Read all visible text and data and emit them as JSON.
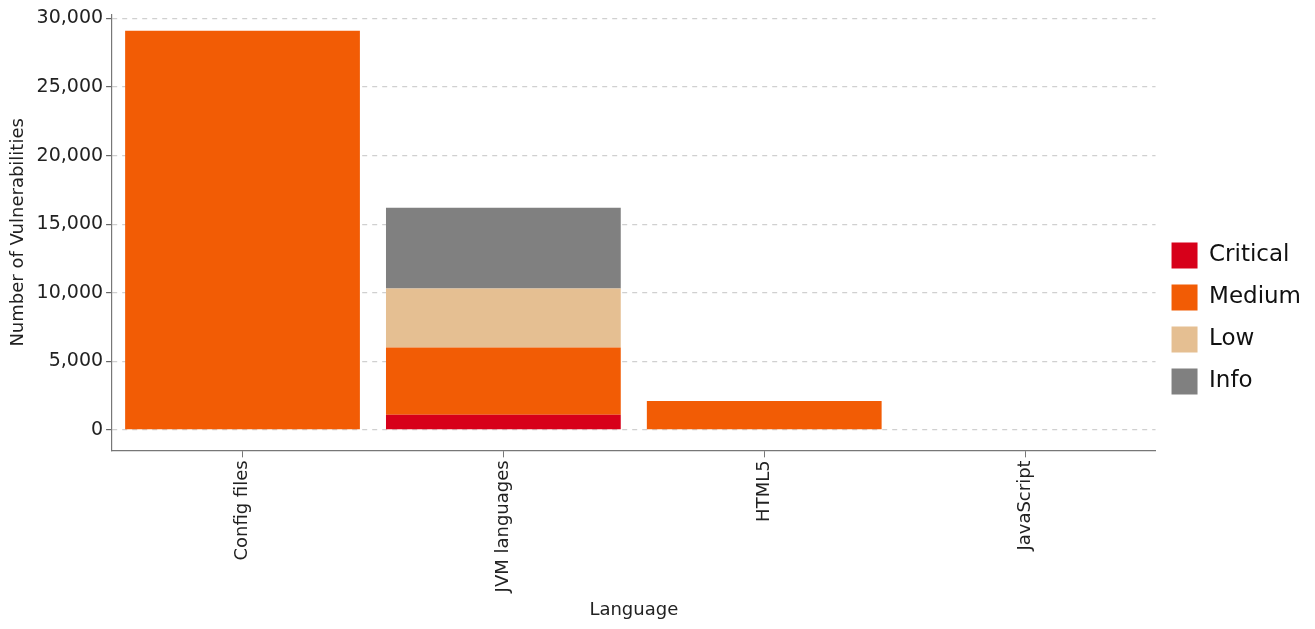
{
  "chart_data": {
    "type": "bar",
    "stacked": true,
    "xlabel": "Language",
    "ylabel": "Number of Vulnerabilities",
    "categories": [
      "Config files",
      "JVM languages",
      "HTML5",
      "JavaScript"
    ],
    "series": [
      {
        "name": "Critical",
        "color": "#d7001a",
        "values": [
          0,
          1100,
          0,
          0
        ]
      },
      {
        "name": "Medium",
        "color": "#f25c05",
        "values": [
          29100,
          4900,
          2100,
          0
        ]
      },
      {
        "name": "Low",
        "color": "#e5bf92",
        "values": [
          0,
          4300,
          0,
          0
        ]
      },
      {
        "name": "Info",
        "color": "#808080",
        "values": [
          0,
          5900,
          0,
          0
        ]
      }
    ],
    "ylim": [
      -1500,
      30300
    ],
    "yticks": [
      {
        "value": 0,
        "label": "0"
      },
      {
        "value": 5000,
        "label": "5,000"
      },
      {
        "value": 10000,
        "label": "10,000"
      },
      {
        "value": 15000,
        "label": "15,000"
      },
      {
        "value": 20000,
        "label": "20,000"
      },
      {
        "value": 25000,
        "label": "25,000"
      },
      {
        "value": 30000,
        "label": "30,000"
      }
    ],
    "grid": "y",
    "legend": "right"
  }
}
